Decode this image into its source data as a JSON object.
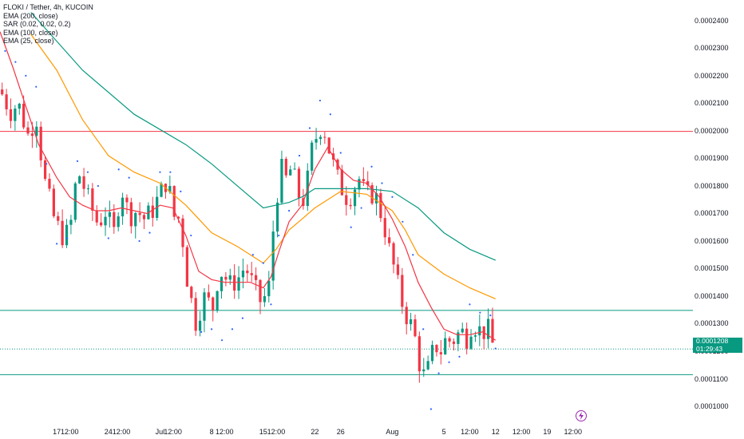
{
  "legend": {
    "title": "FLOKI / Tether, 4h, KUCOIN",
    "indicators": [
      "EMA (200, close)",
      "SAR (0.02, 0.02, 0.2)",
      "EMA (100, close)",
      "EMA (25, close)"
    ]
  },
  "colors": {
    "bull": "#089981",
    "bear": "#f23645",
    "ema200": "#089981",
    "ema100": "#ff9800",
    "ema25": "#f23645",
    "sar": "#2962ff",
    "red_line": "#f23645",
    "teal_line": "#089981",
    "flash": "#9c27b0"
  },
  "last_price": {
    "value": "0.0001208",
    "countdown": "01:29:43"
  },
  "flash_icon": "lightning-bolt-icon",
  "chart_data": {
    "type": "line",
    "title": "FLOKI / Tether, 4h, KUCOIN",
    "y_range": [
      9.45e-05,
      0.0002475
    ],
    "x_range": [
      14.8,
      41.4
    ],
    "y_ticks": [
      "0.0002400",
      "0.0002300",
      "0.0002200",
      "0.0002100",
      "0.0002000",
      "0.0001900",
      "0.0001800",
      "0.0001700",
      "0.0001600",
      "0.0001500",
      "0.0001400",
      "0.0001300",
      "0.0001200",
      "0.0001100",
      "0.0001000"
    ],
    "y_tick_values": [
      0.00024,
      0.00023,
      0.00022,
      0.00021,
      0.0002,
      0.00019,
      0.00018,
      0.00017,
      0.00016,
      0.00015,
      0.00014,
      0.00013,
      0.00012,
      0.00011,
      0.0001
    ],
    "x_ticks": [
      {
        "label": "17",
        "t": 17.0
      },
      {
        "label": "12:00",
        "t": 17.5
      },
      {
        "label": "24",
        "t": 19.0
      },
      {
        "label": "12:00",
        "t": 19.5
      },
      {
        "label": "Jul",
        "t": 21.0
      },
      {
        "label": "12:00",
        "t": 21.5
      },
      {
        "label": "8",
        "t": 23.0
      },
      {
        "label": "12:00",
        "t": 23.5
      },
      {
        "label": "15",
        "t": 25.0
      },
      {
        "label": "12:00",
        "t": 25.5
      },
      {
        "label": "22",
        "t": 27.0
      },
      {
        "label": "26",
        "t": 28.0
      },
      {
        "label": "Aug",
        "t": 30.0
      },
      {
        "label": "5",
        "t": 32.0
      },
      {
        "label": "12:00",
        "t": 33.0
      },
      {
        "label": "12",
        "t": 34.0
      },
      {
        "label": "12:00",
        "t": 35.0
      },
      {
        "label": "19",
        "t": 36.0
      },
      {
        "label": "12:00",
        "t": 37.0
      }
    ],
    "horizontal_lines": [
      {
        "price": 0.0001998,
        "color": "#f23645"
      },
      {
        "price": 0.0001348,
        "color": "#089981"
      },
      {
        "price": 0.0001208,
        "color": "#089981",
        "style": "dotted"
      },
      {
        "price": 0.0001115,
        "color": "#089981"
      }
    ],
    "price_path": [
      [
        14.8,
        0.000215
      ],
      [
        15.2,
        0.000207
      ],
      [
        15.5,
        0.00021
      ],
      [
        15.9,
        0.000198
      ],
      [
        16.2,
        0.000206
      ],
      [
        16.5,
        0.000183
      ],
      [
        16.9,
        0.000168
      ],
      [
        17.2,
        0.000162
      ],
      [
        17.5,
        0.000163
      ],
      [
        17.8,
        0.000186
      ],
      [
        18.0,
        0.000181
      ],
      [
        18.3,
        0.000173
      ],
      [
        18.6,
        0.000166
      ],
      [
        18.9,
        0.000171
      ],
      [
        19.2,
        0.000162
      ],
      [
        19.5,
        0.00018
      ],
      [
        19.8,
        0.000169
      ],
      [
        20.1,
        0.000171
      ],
      [
        20.4,
        0.000168
      ],
      [
        20.7,
        0.000171
      ],
      [
        21.0,
        0.000177
      ],
      [
        21.3,
        0.000183
      ],
      [
        21.5,
        0.000169
      ],
      [
        21.8,
        0.000168
      ],
      [
        22.0,
        0.000149
      ],
      [
        22.2,
        0.000139
      ],
      [
        22.4,
        0.00013
      ],
      [
        22.6,
        0.000137
      ],
      [
        22.8,
        0.000141
      ],
      [
        23.0,
        0.000133
      ],
      [
        23.2,
        0.000145
      ],
      [
        23.4,
        0.000149
      ],
      [
        23.7,
        0.000144
      ],
      [
        24.0,
        0.000146
      ],
      [
        24.3,
        0.000151
      ],
      [
        24.6,
        0.000144
      ],
      [
        24.9,
        0.000138
      ],
      [
        25.2,
        0.000141
      ],
      [
        25.3,
        0.000156
      ],
      [
        25.5,
        0.000175
      ],
      [
        25.7,
        0.000186
      ],
      [
        25.9,
        0.000182
      ],
      [
        26.1,
        0.000187
      ],
      [
        26.3,
        0.000179
      ],
      [
        26.5,
        0.000173
      ],
      [
        26.7,
        0.000181
      ],
      [
        26.9,
        0.000194
      ],
      [
        27.1,
        0.000199
      ],
      [
        27.3,
        0.000203
      ],
      [
        27.5,
        0.000195
      ],
      [
        27.7,
        0.000188
      ],
      [
        27.9,
        0.000182
      ],
      [
        28.1,
        0.000178
      ],
      [
        28.3,
        0.000175
      ],
      [
        28.5,
        0.000179
      ],
      [
        28.7,
        0.000183
      ],
      [
        28.9,
        0.000178
      ],
      [
        29.1,
        0.000176
      ],
      [
        29.3,
        0.000178
      ],
      [
        29.5,
        0.000172
      ],
      [
        29.7,
        0.000165
      ],
      [
        29.9,
        0.000156
      ],
      [
        30.1,
        0.000149
      ],
      [
        30.3,
        0.00014
      ],
      [
        30.5,
        0.000134
      ],
      [
        30.7,
        0.00013
      ],
      [
        30.9,
        0.000124
      ],
      [
        31.1,
        0.000113
      ],
      [
        31.3,
        0.00011
      ],
      [
        31.5,
        0.000118
      ],
      [
        31.7,
        0.000122
      ],
      [
        31.9,
        0.00012
      ],
      [
        32.1,
        0.000125
      ],
      [
        32.3,
        0.000123
      ],
      [
        32.5,
        0.000126
      ],
      [
        32.7,
        0.000127
      ],
      [
        32.9,
        0.000125
      ],
      [
        33.1,
        0.000131
      ],
      [
        33.3,
        0.000128
      ],
      [
        33.5,
        0.000127
      ],
      [
        33.7,
        0.000128
      ],
      [
        33.9,
        0.000122
      ],
      [
        34.0,
        0.0001208
      ]
    ],
    "series": [
      {
        "name": "EMA (200, close)",
        "color": "#089981",
        "points": [
          [
            16.0,
            0.000243
          ],
          [
            18.0,
            0.000222
          ],
          [
            20.0,
            0.000206
          ],
          [
            22.0,
            0.000195
          ],
          [
            23.0,
            0.000188
          ],
          [
            24.0,
            0.00018
          ],
          [
            25.0,
            0.000172
          ],
          [
            26.0,
            0.000174
          ],
          [
            26.5,
            0.000176
          ],
          [
            27.0,
            0.000179
          ],
          [
            28.0,
            0.000179
          ],
          [
            29.0,
            0.000179
          ],
          [
            30.0,
            0.000178
          ],
          [
            31.0,
            0.000172
          ],
          [
            32.0,
            0.000163
          ],
          [
            33.0,
            0.000157
          ],
          [
            34.0,
            0.000153
          ]
        ]
      },
      {
        "name": "EMA (100, close)",
        "color": "#ff9800",
        "points": [
          [
            16.0,
            0.000235
          ],
          [
            17.0,
            0.000222
          ],
          [
            18.0,
            0.000204
          ],
          [
            19.0,
            0.000191
          ],
          [
            20.0,
            0.000185
          ],
          [
            21.0,
            0.000181
          ],
          [
            22.0,
            0.000173
          ],
          [
            23.0,
            0.000163
          ],
          [
            24.0,
            0.000158
          ],
          [
            25.0,
            0.000152
          ],
          [
            25.5,
            0.000157
          ],
          [
            26.0,
            0.000164
          ],
          [
            26.5,
            0.000168
          ],
          [
            27.0,
            0.000172
          ],
          [
            28.0,
            0.000178
          ],
          [
            29.0,
            0.000177
          ],
          [
            30.0,
            0.000171
          ],
          [
            30.5,
            0.000164
          ],
          [
            31.0,
            0.000155
          ],
          [
            32.0,
            0.000148
          ],
          [
            33.0,
            0.000143
          ],
          [
            34.0,
            0.000139
          ]
        ]
      },
      {
        "name": "EMA (25, close)",
        "color": "#f23645",
        "points": [
          [
            14.8,
            0.000236
          ],
          [
            15.3,
            0.000223
          ],
          [
            15.8,
            0.000209
          ],
          [
            16.3,
            0.000195
          ],
          [
            17.0,
            0.000183
          ],
          [
            17.5,
            0.000176
          ],
          [
            18.0,
            0.000173
          ],
          [
            18.5,
            0.000171
          ],
          [
            19.0,
            0.000171
          ],
          [
            19.5,
            0.000172
          ],
          [
            20.0,
            0.000171
          ],
          [
            20.5,
            0.00017
          ],
          [
            21.0,
            0.000173
          ],
          [
            21.5,
            0.000172
          ],
          [
            22.0,
            0.000162
          ],
          [
            22.5,
            0.000149
          ],
          [
            23.0,
            0.000146
          ],
          [
            23.5,
            0.000145
          ],
          [
            24.0,
            0.000145
          ],
          [
            24.5,
            0.000145
          ],
          [
            25.0,
            0.000143
          ],
          [
            25.3,
            0.000147
          ],
          [
            25.6,
            0.000156
          ],
          [
            26.0,
            0.000167
          ],
          [
            26.5,
            0.000173
          ],
          [
            27.0,
            0.000186
          ],
          [
            27.5,
            0.000194
          ],
          [
            28.0,
            0.000186
          ],
          [
            28.5,
            0.000182
          ],
          [
            29.0,
            0.000181
          ],
          [
            29.5,
            0.000176
          ],
          [
            30.0,
            0.000168
          ],
          [
            30.5,
            0.000158
          ],
          [
            31.0,
            0.000145
          ],
          [
            31.5,
            0.000136
          ],
          [
            32.0,
            0.000128
          ],
          [
            32.5,
            0.000126
          ],
          [
            33.0,
            0.000126
          ],
          [
            33.5,
            0.000127
          ],
          [
            34.0,
            0.000124
          ]
        ]
      },
      {
        "name": "SAR (0.02, 0.02, 0.2)",
        "color": "#2962ff",
        "type": "scatter",
        "points": [
          [
            15.0,
            0.000229
          ],
          [
            15.4,
            0.000225
          ],
          [
            15.8,
            0.00022
          ],
          [
            16.2,
            0.000216
          ],
          [
            16.6,
            0.000188
          ],
          [
            17.0,
            0.000159
          ],
          [
            17.4,
            0.000161
          ],
          [
            17.8,
            0.000189
          ],
          [
            18.2,
            0.000185
          ],
          [
            18.6,
            0.00018
          ],
          [
            19.0,
            0.000161
          ],
          [
            19.4,
            0.000186
          ],
          [
            19.8,
            0.000183
          ],
          [
            20.2,
            0.00016
          ],
          [
            20.6,
            0.000163
          ],
          [
            21.0,
            0.000185
          ],
          [
            21.4,
            0.000185
          ],
          [
            21.8,
            0.000178
          ],
          [
            22.2,
            0.000162
          ],
          [
            22.6,
            0.000127
          ],
          [
            23.0,
            0.000128
          ],
          [
            23.4,
            0.000124
          ],
          [
            23.8,
            0.000128
          ],
          [
            24.2,
            0.000132
          ],
          [
            24.6,
            0.000155
          ],
          [
            25.0,
            0.000152
          ],
          [
            25.3,
            0.000137
          ],
          [
            25.6,
            0.000162
          ],
          [
            26.0,
            0.000171
          ],
          [
            26.4,
            0.000191
          ],
          [
            26.8,
            0.000201
          ],
          [
            27.2,
            0.000211
          ],
          [
            27.6,
            0.000206
          ],
          [
            28.0,
            0.000192
          ],
          [
            28.4,
            0.000165
          ],
          [
            28.8,
            0.000172
          ],
          [
            29.2,
            0.000187
          ],
          [
            29.6,
            0.000181
          ],
          [
            30.0,
            0.000176
          ],
          [
            30.4,
            0.000167
          ],
          [
            30.8,
            0.000155
          ],
          [
            31.2,
            0.000128
          ],
          [
            31.5,
            9.9e-05
          ],
          [
            31.8,
            0.000112
          ],
          [
            32.2,
            0.000116
          ],
          [
            32.6,
            0.000118
          ],
          [
            33.0,
            0.000137
          ],
          [
            33.4,
            0.000134
          ],
          [
            33.8,
            0.000133
          ],
          [
            34.0,
            0.000121
          ]
        ]
      }
    ]
  }
}
